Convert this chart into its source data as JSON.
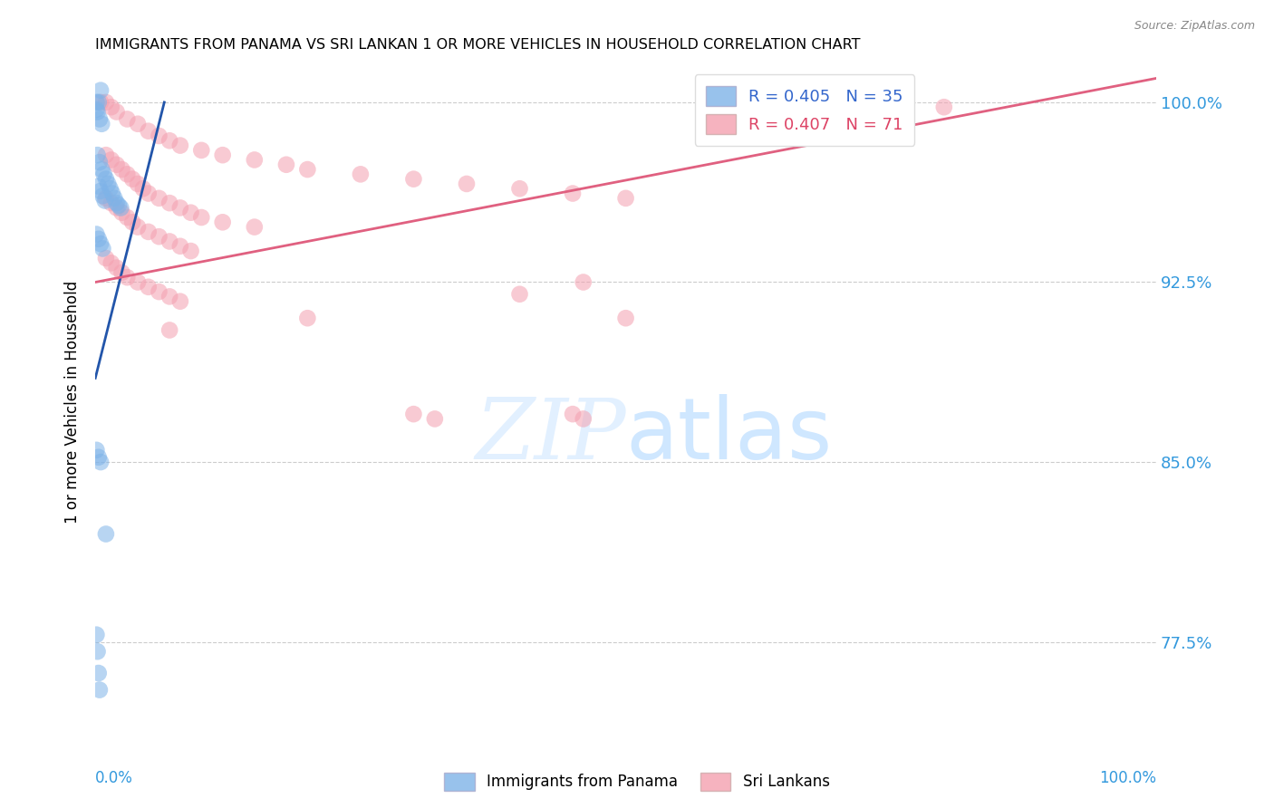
{
  "title": "IMMIGRANTS FROM PANAMA VS SRI LANKAN 1 OR MORE VEHICLES IN HOUSEHOLD CORRELATION CHART",
  "source": "Source: ZipAtlas.com",
  "ylabel": "1 or more Vehicles in Household",
  "ytick_labels": [
    "77.5%",
    "85.0%",
    "92.5%",
    "100.0%"
  ],
  "ytick_values": [
    0.775,
    0.85,
    0.925,
    1.0
  ],
  "legend_blue_r": "0.405",
  "legend_blue_n": "35",
  "legend_pink_r": "0.407",
  "legend_pink_n": "71",
  "legend_label_blue": "Immigrants from Panama",
  "legend_label_pink": "Sri Lankans",
  "blue_color": "#7EB3E8",
  "pink_color": "#F4A0B0",
  "blue_line_color": "#2255AA",
  "pink_line_color": "#E06080",
  "blue_line_x": [
    0.0,
    0.065
  ],
  "blue_line_y": [
    0.885,
    1.0
  ],
  "pink_line_x": [
    0.0,
    1.0
  ],
  "pink_line_y": [
    0.925,
    1.01
  ],
  "blue_scatter": [
    [
      0.001,
      1.0
    ],
    [
      0.003,
      1.0
    ],
    [
      0.005,
      1.005
    ],
    [
      0.001,
      0.997
    ],
    [
      0.002,
      0.996
    ],
    [
      0.004,
      0.993
    ],
    [
      0.006,
      0.991
    ],
    [
      0.002,
      0.978
    ],
    [
      0.004,
      0.975
    ],
    [
      0.006,
      0.972
    ],
    [
      0.008,
      0.97
    ],
    [
      0.01,
      0.968
    ],
    [
      0.012,
      0.966
    ],
    [
      0.014,
      0.964
    ],
    [
      0.016,
      0.962
    ],
    [
      0.018,
      0.96
    ],
    [
      0.02,
      0.958
    ],
    [
      0.022,
      0.957
    ],
    [
      0.024,
      0.956
    ],
    [
      0.003,
      0.965
    ],
    [
      0.005,
      0.963
    ],
    [
      0.007,
      0.961
    ],
    [
      0.009,
      0.959
    ],
    [
      0.001,
      0.945
    ],
    [
      0.003,
      0.943
    ],
    [
      0.005,
      0.941
    ],
    [
      0.007,
      0.939
    ],
    [
      0.001,
      0.855
    ],
    [
      0.003,
      0.852
    ],
    [
      0.005,
      0.85
    ],
    [
      0.01,
      0.82
    ],
    [
      0.001,
      0.778
    ],
    [
      0.002,
      0.771
    ],
    [
      0.003,
      0.762
    ],
    [
      0.004,
      0.755
    ]
  ],
  "pink_scatter": [
    [
      0.005,
      1.0
    ],
    [
      0.01,
      1.0
    ],
    [
      0.015,
      0.998
    ],
    [
      0.02,
      0.996
    ],
    [
      0.03,
      0.993
    ],
    [
      0.04,
      0.991
    ],
    [
      0.05,
      0.988
    ],
    [
      0.06,
      0.986
    ],
    [
      0.07,
      0.984
    ],
    [
      0.08,
      0.982
    ],
    [
      0.1,
      0.98
    ],
    [
      0.12,
      0.978
    ],
    [
      0.15,
      0.976
    ],
    [
      0.18,
      0.974
    ],
    [
      0.2,
      0.972
    ],
    [
      0.25,
      0.97
    ],
    [
      0.3,
      0.968
    ],
    [
      0.35,
      0.966
    ],
    [
      0.4,
      0.964
    ],
    [
      0.45,
      0.962
    ],
    [
      0.5,
      0.96
    ],
    [
      0.6,
      0.99
    ],
    [
      0.7,
      0.997
    ],
    [
      0.8,
      0.998
    ],
    [
      0.01,
      0.978
    ],
    [
      0.015,
      0.976
    ],
    [
      0.02,
      0.974
    ],
    [
      0.025,
      0.972
    ],
    [
      0.03,
      0.97
    ],
    [
      0.035,
      0.968
    ],
    [
      0.04,
      0.966
    ],
    [
      0.045,
      0.964
    ],
    [
      0.05,
      0.962
    ],
    [
      0.06,
      0.96
    ],
    [
      0.07,
      0.958
    ],
    [
      0.08,
      0.956
    ],
    [
      0.09,
      0.954
    ],
    [
      0.1,
      0.952
    ],
    [
      0.12,
      0.95
    ],
    [
      0.15,
      0.948
    ],
    [
      0.01,
      0.96
    ],
    [
      0.015,
      0.958
    ],
    [
      0.02,
      0.956
    ],
    [
      0.025,
      0.954
    ],
    [
      0.03,
      0.952
    ],
    [
      0.035,
      0.95
    ],
    [
      0.04,
      0.948
    ],
    [
      0.05,
      0.946
    ],
    [
      0.06,
      0.944
    ],
    [
      0.07,
      0.942
    ],
    [
      0.08,
      0.94
    ],
    [
      0.09,
      0.938
    ],
    [
      0.01,
      0.935
    ],
    [
      0.015,
      0.933
    ],
    [
      0.02,
      0.931
    ],
    [
      0.025,
      0.929
    ],
    [
      0.03,
      0.927
    ],
    [
      0.04,
      0.925
    ],
    [
      0.05,
      0.923
    ],
    [
      0.06,
      0.921
    ],
    [
      0.07,
      0.919
    ],
    [
      0.08,
      0.917
    ],
    [
      0.2,
      0.91
    ],
    [
      0.3,
      0.87
    ],
    [
      0.32,
      0.868
    ],
    [
      0.45,
      0.87
    ],
    [
      0.46,
      0.868
    ],
    [
      0.46,
      0.925
    ],
    [
      0.4,
      0.92
    ],
    [
      0.5,
      0.91
    ],
    [
      0.07,
      0.905
    ]
  ],
  "xmin": 0.0,
  "xmax": 1.0,
  "ymin": 0.735,
  "ymax": 1.015
}
